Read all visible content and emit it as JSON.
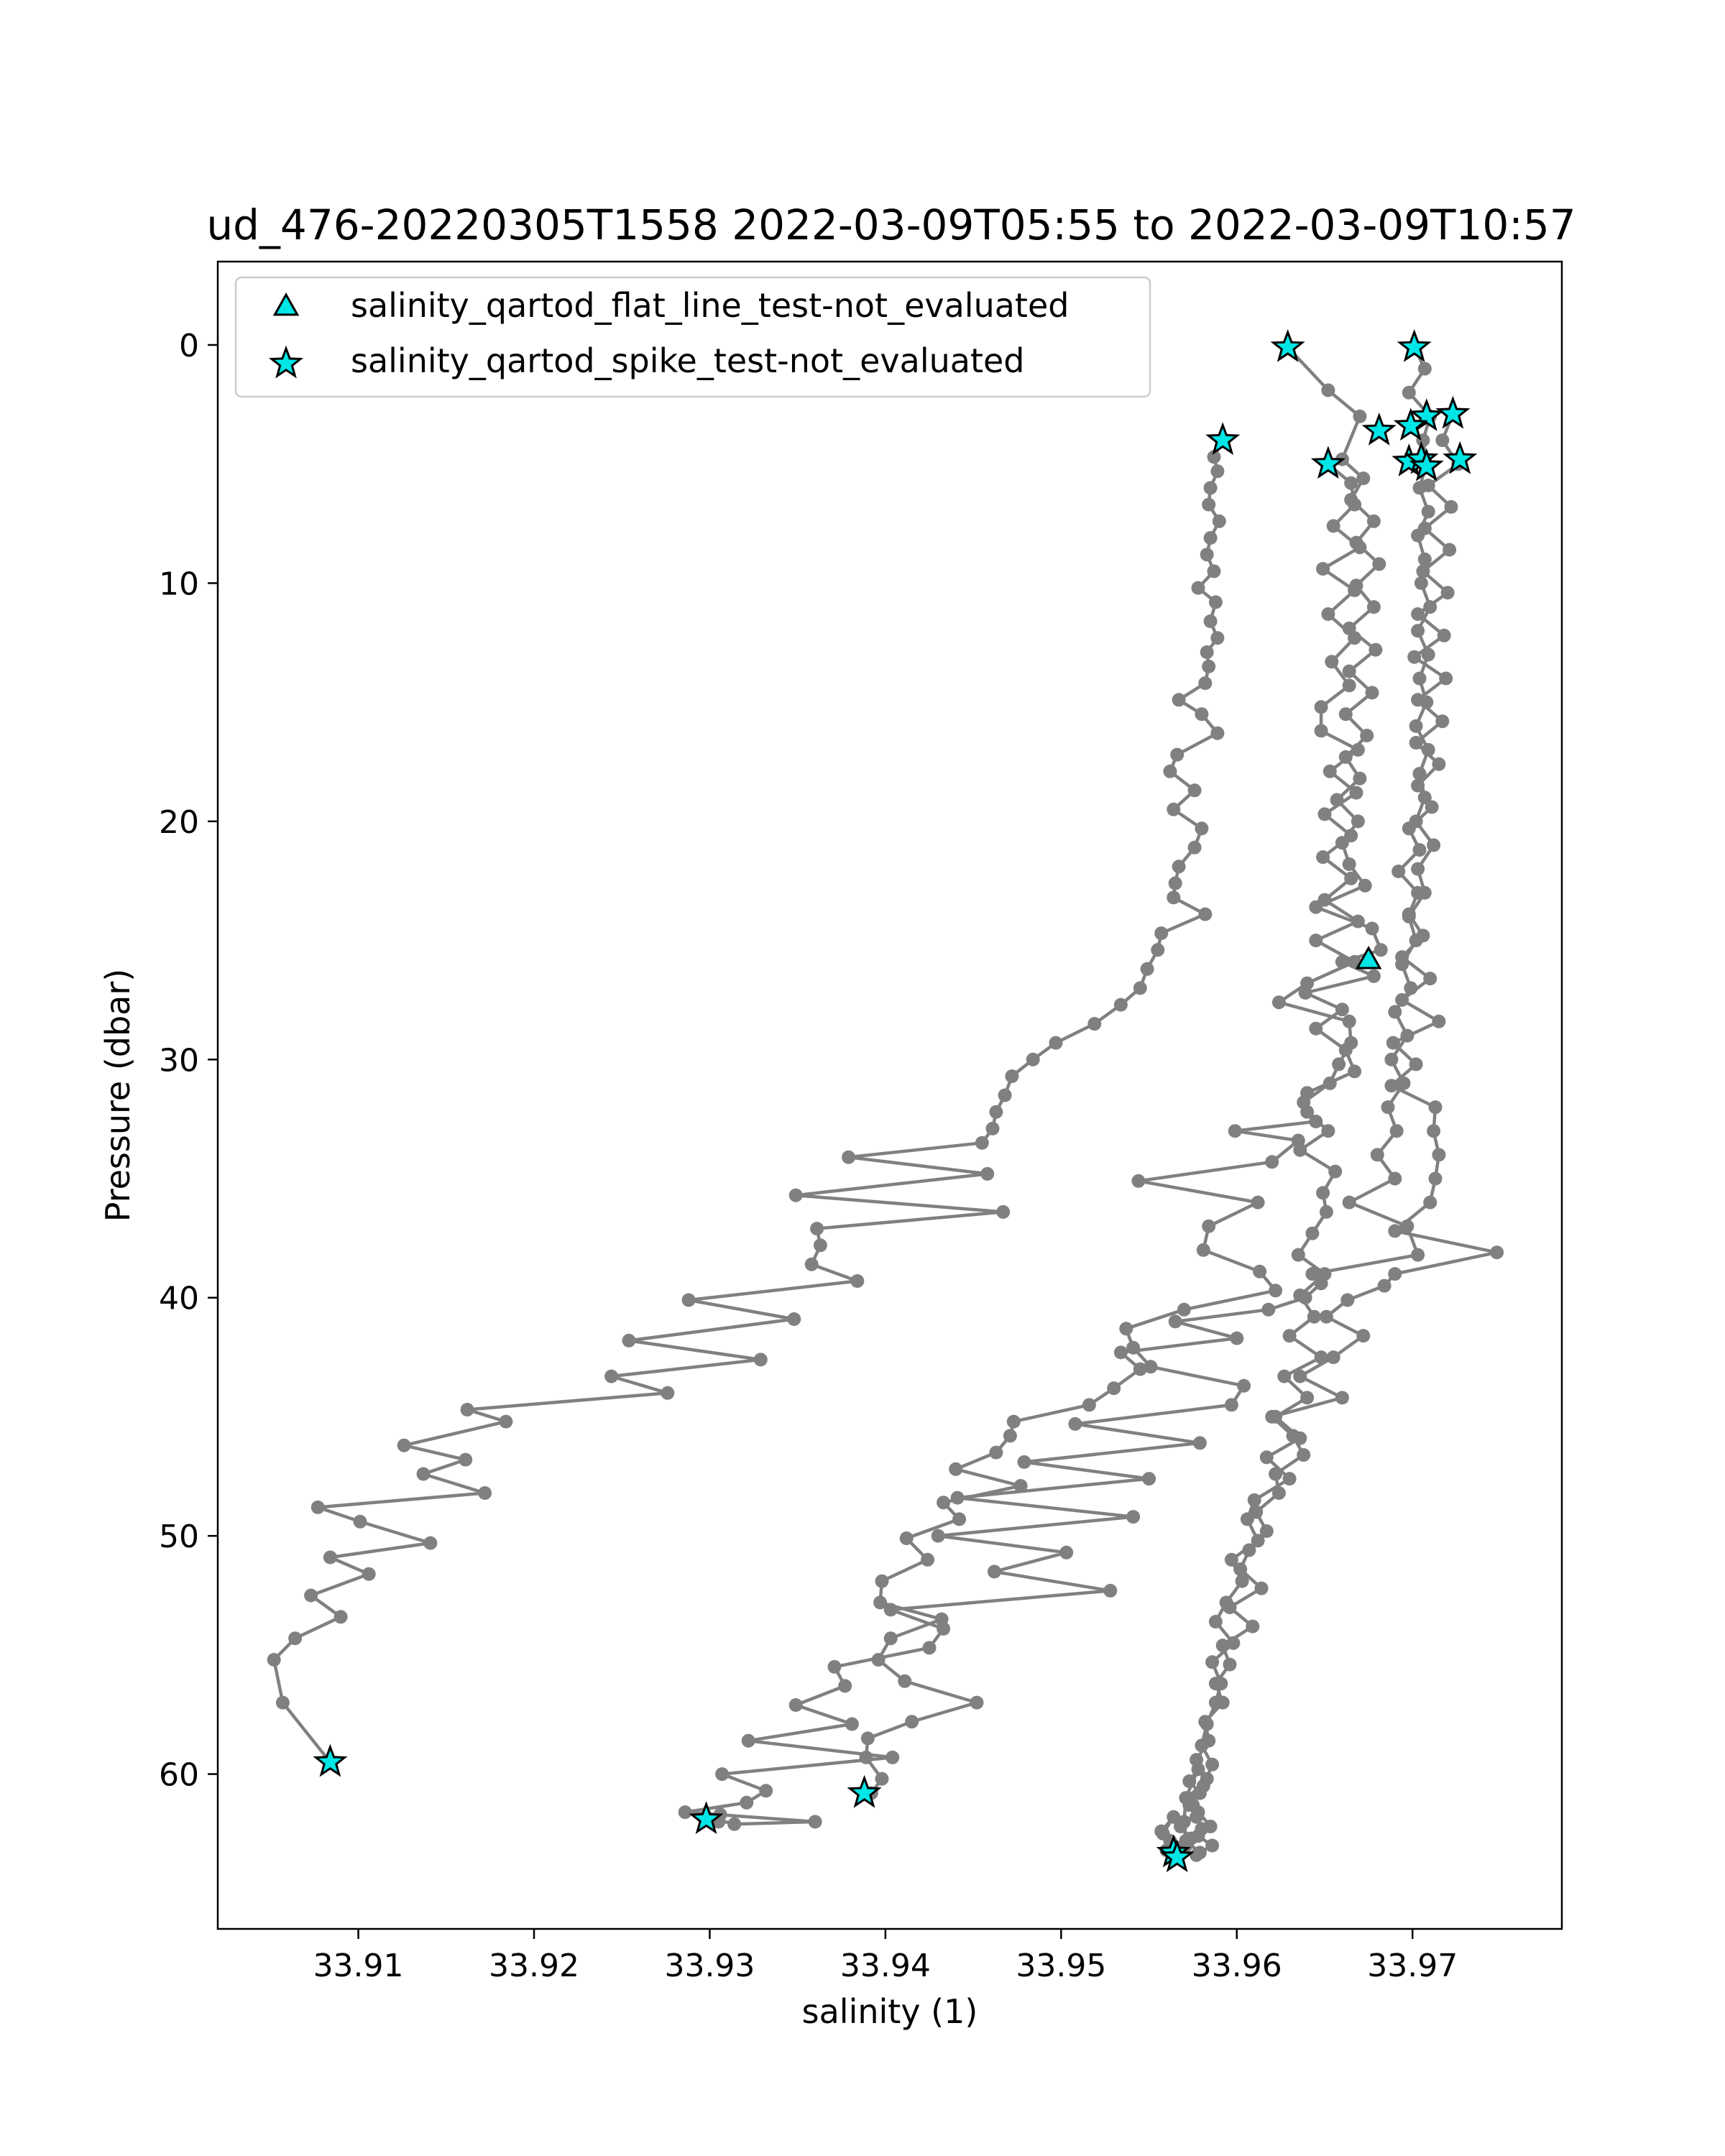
{
  "chart_data": {
    "type": "line",
    "title": "ud_476-20220305T1558 2022-03-09T05:55 to 2022-03-09T10:57",
    "xlabel": "salinity (1)",
    "ylabel": "Pressure (dbar)",
    "xlim": [
      33.902,
      33.9785
    ],
    "ylim": [
      66.5,
      -3.5
    ],
    "y_inverted": true,
    "xticks": [
      33.91,
      33.92,
      33.93,
      33.94,
      33.95,
      33.96,
      33.97
    ],
    "xtick_labels": [
      "33.91",
      "33.92",
      "33.93",
      "33.94",
      "33.95",
      "33.96",
      "33.97"
    ],
    "yticks": [
      0,
      10,
      20,
      30,
      40,
      50,
      60
    ],
    "ytick_labels": [
      "0",
      "10",
      "20",
      "30",
      "40",
      "50",
      "60"
    ],
    "grid": false,
    "legend_position": "top-left",
    "colors": {
      "line": "#808080",
      "marker_fill": "#00e5e5",
      "marker_edge": "#000000"
    },
    "legend": [
      {
        "label": "salinity_qartod_flat_line_test-not_evaluated",
        "marker": "triangle"
      },
      {
        "label": "salinity_qartod_spike_test-not_evaluated",
        "marker": "star"
      }
    ],
    "series": [
      {
        "x": [
          33.9592,
          33.9587,
          33.9589,
          33.9585,
          33.9584,
          33.959,
          33.9585,
          33.9583,
          33.9587,
          33.9578,
          33.9588,
          33.9585,
          33.9589,
          33.9583,
          33.9584,
          33.9582,
          33.9567,
          33.958,
          33.9589,
          33.9566,
          33.9562,
          33.9576,
          33.9564,
          33.958,
          33.9576,
          33.9567,
          33.9565,
          33.9564,
          33.9582,
          33.9557,
          33.9555,
          33.9549,
          33.9545,
          33.9534,
          33.9519,
          33.9497,
          33.9484,
          33.9472,
          33.9468,
          33.9463,
          33.9461,
          33.9455,
          33.9379,
          33.9458,
          33.9349,
          33.9467,
          33.9361,
          33.9363,
          33.9358,
          33.9384,
          33.9288,
          33.9348,
          33.9254,
          33.9329,
          33.9244,
          33.9276,
          33.9162,
          33.9184,
          33.9126,
          33.9161,
          33.9137,
          33.9172,
          33.9077,
          33.9101,
          33.9141,
          33.9084,
          33.9106,
          33.9073,
          33.909,
          33.9064,
          33.9052,
          33.9057,
          33.9084
        ],
        "y": [
          4.0,
          4.7,
          5.3,
          6.0,
          6.7,
          7.4,
          8.1,
          8.8,
          9.5,
          10.2,
          10.8,
          11.6,
          12.3,
          12.9,
          13.5,
          14.2,
          14.9,
          15.5,
          16.3,
          17.2,
          17.9,
          18.7,
          19.5,
          20.3,
          21.1,
          21.9,
          22.6,
          23.2,
          23.9,
          24.7,
          25.4,
          26.2,
          27.0,
          27.7,
          28.5,
          29.3,
          30.0,
          30.7,
          31.5,
          32.2,
          32.9,
          33.5,
          34.1,
          34.8,
          35.7,
          36.4,
          37.1,
          37.8,
          38.6,
          39.3,
          40.1,
          40.9,
          41.8,
          42.6,
          43.3,
          44.0,
          44.7,
          45.2,
          46.2,
          46.8,
          47.4,
          48.2,
          48.8,
          49.4,
          50.3,
          50.9,
          51.6,
          52.5,
          53.4,
          54.3,
          55.2,
          57.0,
          59.5
        ]
      },
      {
        "x": [
          33.9652,
          33.9665,
          33.9667,
          33.9655,
          33.967,
          33.9649,
          33.9667,
          33.9652,
          33.9667,
          33.9654,
          33.9664,
          33.9648,
          33.9648,
          33.9669,
          33.9653,
          33.9668,
          33.965,
          33.9665,
          33.9649,
          33.9665,
          33.965,
          33.9669,
          33.9645,
          33.9667,
          33.964,
          33.9624,
          33.9664,
          33.9665,
          33.9658,
          33.9653,
          33.9638,
          33.9645,
          33.9599,
          33.9635,
          33.962,
          33.9544,
          33.9612,
          33.9584,
          33.9581,
          33.9613,
          33.9622,
          33.957,
          33.9537,
          33.9541,
          33.9551,
          33.9604,
          33.9597,
          33.9508,
          33.9579,
          33.9479,
          33.955,
          33.9441,
          33.9541,
          33.943,
          33.9503,
          33.9462,
          33.9528,
          33.9403,
          33.9433,
          33.9425,
          33.9371,
          33.9377,
          33.9349,
          33.9381,
          33.9322,
          33.9404,
          33.9307,
          33.9332,
          33.9321,
          33.9286,
          33.936,
          33.9314,
          33.9298,
          33.9306,
          33.9305,
          33.9298
        ],
        "y": [
          5.0,
          5.8,
          6.7,
          7.6,
          8.5,
          9.4,
          10.3,
          11.3,
          12.3,
          13.3,
          14.3,
          15.2,
          16.2,
          17.0,
          17.9,
          18.8,
          19.7,
          20.6,
          21.5,
          22.4,
          23.3,
          24.2,
          25.0,
          25.9,
          26.8,
          27.6,
          28.4,
          29.3,
          30.2,
          31.0,
          31.8,
          32.6,
          33.0,
          33.4,
          34.3,
          35.1,
          36.0,
          37.0,
          38.0,
          38.9,
          39.7,
          40.5,
          41.3,
          42.1,
          42.9,
          43.7,
          44.5,
          45.3,
          46.1,
          46.9,
          47.6,
          48.4,
          49.2,
          50.0,
          50.7,
          51.5,
          52.3,
          53.1,
          53.9,
          54.7,
          55.5,
          56.3,
          57.1,
          57.9,
          58.6,
          59.3,
          60.0,
          60.7,
          61.2,
          61.6,
          62.0,
          62.1,
          61.8,
          61.7,
          62.0,
          61.9
        ]
      },
      {
        "x": [
          33.9701,
          33.9707,
          33.9698,
          33.971,
          33.9706,
          33.9708,
          33.9704,
          33.9709,
          33.9703,
          33.9707,
          33.9705,
          33.971,
          33.9703,
          33.9709,
          33.9704,
          33.9708,
          33.9702,
          33.9709,
          33.9704,
          33.9707,
          33.9702,
          33.9712,
          33.9703,
          33.9707,
          33.9698,
          33.9702,
          33.9694,
          33.9699,
          33.969,
          33.9697,
          33.9688,
          33.9695,
          33.9686,
          33.9691,
          33.968,
          33.969,
          33.9664,
          33.9697,
          33.9703,
          33.9643,
          33.9648,
          33.9639,
          33.9618,
          33.9565,
          33.96,
          33.9534,
          33.9545,
          33.953,
          33.9516,
          33.9473,
          33.9471,
          33.9463,
          33.944,
          33.9477,
          33.9433,
          33.9442,
          33.9412,
          33.9424,
          33.9398,
          33.9397,
          33.9432,
          33.9403,
          33.9396,
          33.9411,
          33.9452,
          33.9415,
          33.939,
          33.9389,
          33.9398,
          33.9392
        ],
        "y": [
          0.1,
          1.0,
          2.0,
          3.0,
          4.0,
          5.0,
          6.0,
          7.0,
          8.0,
          9.0,
          10.0,
          11.0,
          12.0,
          13.0,
          14.0,
          15.0,
          16.0,
          17.0,
          18.0,
          19.0,
          20.0,
          21.0,
          22.0,
          23.0,
          24.0,
          25.0,
          26.0,
          27.0,
          28.0,
          29.0,
          30.0,
          31.0,
          32.0,
          33.0,
          34.0,
          35.0,
          36.0,
          37.0,
          38.2,
          39.0,
          39.4,
          40.0,
          40.5,
          41.0,
          41.7,
          42.3,
          43.0,
          43.8,
          44.5,
          45.2,
          45.8,
          46.5,
          47.2,
          47.9,
          48.6,
          49.3,
          50.1,
          51.0,
          51.9,
          52.8,
          53.5,
          54.3,
          55.2,
          56.1,
          57.0,
          57.8,
          58.5,
          59.3,
          60.2,
          60.8
        ]
      },
      {
        "x": [
          33.9629,
          33.9652,
          33.967,
          33.966,
          33.9672,
          33.9665,
          33.9678,
          33.9668,
          33.9681,
          33.9668,
          33.9678,
          33.9664,
          33.9679,
          33.9664,
          33.9677,
          33.9662,
          33.9674,
          33.9662,
          33.967,
          33.9657,
          33.9669,
          33.966,
          33.9664,
          33.9673,
          33.9645,
          33.9677,
          33.9682,
          33.966,
          33.9678,
          33.9639,
          33.966,
          33.9645,
          33.9662,
          33.9667,
          33.964,
          33.964,
          33.9652,
          33.9636,
          33.9656,
          33.9649,
          33.9651,
          33.9643,
          33.9635,
          33.965,
          33.9636,
          33.9644,
          33.963,
          33.9648,
          33.9627,
          33.964,
          33.9622,
          33.9636,
          33.9617,
          33.963,
          33.961,
          33.9606,
          33.9612,
          33.9597,
          33.9603,
          33.9594,
          33.9588,
          33.9598,
          33.9586,
          33.9591,
          33.9588,
          33.9583,
          33.958,
          33.9586,
          33.9581,
          33.9575,
          33.9585,
          33.9578,
          33.9586,
          33.9579,
          33.9571,
          33.958,
          33.9577,
          33.9573,
          33.9579,
          33.9573,
          33.9578,
          33.9571,
          33.957,
          33.9571,
          33.9564,
          33.9565
        ],
        "y": [
          0.1,
          1.9,
          3.0,
          4.8,
          5.6,
          6.5,
          7.4,
          8.3,
          9.2,
          10.1,
          11.0,
          11.9,
          12.8,
          13.7,
          14.6,
          15.5,
          16.4,
          17.3,
          18.2,
          19.1,
          20.0,
          20.9,
          21.8,
          22.7,
          23.6,
          24.5,
          25.4,
          25.9,
          26.5,
          27.2,
          27.9,
          28.7,
          29.6,
          30.5,
          31.4,
          32.2,
          33.0,
          33.8,
          34.7,
          35.6,
          36.4,
          37.3,
          38.2,
          39.0,
          39.9,
          40.8,
          41.6,
          42.5,
          43.3,
          44.2,
          45.0,
          45.9,
          46.7,
          47.6,
          48.5,
          49.3,
          50.2,
          51.0,
          51.9,
          52.8,
          53.6,
          54.5,
          55.3,
          56.2,
          57.0,
          57.9,
          58.8,
          59.6,
          60.5,
          61.3,
          62.2,
          62.6,
          63.0,
          63.3,
          62.8,
          62.3,
          61.8,
          61.3,
          60.8,
          60.3,
          59.8,
          61.0,
          62.0,
          63.0,
          63.3,
          63.5
        ]
      },
      {
        "x": [
          33.9723,
          33.9717,
          33.9726,
          33.9709,
          33.9722,
          33.9707,
          33.9721,
          33.9706,
          33.972,
          33.9703,
          33.9718,
          33.9701,
          33.9719,
          33.9703,
          33.9717,
          33.9702,
          33.9715,
          33.9703,
          33.9711,
          33.9698,
          33.9704,
          33.9692,
          33.9703,
          33.9698,
          33.9706,
          33.9694,
          33.971,
          33.9694,
          33.9715,
          33.9689,
          33.9702,
          33.9688,
          33.9713,
          33.9712,
          33.9715,
          33.9713,
          33.971,
          33.969,
          33.9748,
          33.969,
          33.9684,
          33.9663,
          33.9651,
          33.9672,
          33.9655,
          33.9636,
          33.966,
          33.962,
          33.9632,
          33.9638,
          33.9622,
          33.9624,
          33.9611,
          33.9617,
          33.9607,
          33.9602,
          33.9614,
          33.9596,
          33.9609,
          33.9592,
          33.9596,
          33.9588,
          33.9592,
          33.9582,
          33.9584,
          33.9577,
          33.9583,
          33.9572,
          33.9578,
          33.9568,
          33.9574,
          33.9566,
          33.9577,
          33.956,
          33.9562,
          33.9557,
          33.9564,
          33.9558,
          33.9567
        ],
        "y": [
          2.9,
          4.0,
          5.0,
          5.9,
          6.8,
          7.7,
          8.6,
          9.5,
          10.4,
          11.3,
          12.2,
          13.1,
          14.0,
          14.9,
          15.8,
          16.7,
          17.6,
          18.5,
          19.4,
          20.3,
          21.2,
          22.1,
          23.0,
          23.9,
          24.8,
          25.7,
          26.6,
          27.5,
          28.4,
          29.3,
          30.2,
          31.1,
          32.0,
          33.0,
          34.0,
          35.0,
          36.0,
          37.2,
          38.1,
          39.0,
          39.5,
          40.1,
          40.8,
          41.6,
          42.5,
          43.3,
          44.2,
          45.0,
          45.8,
          46.6,
          47.4,
          48.2,
          49.0,
          49.8,
          50.6,
          51.4,
          52.2,
          53.0,
          53.8,
          54.6,
          55.4,
          56.2,
          57.0,
          57.8,
          58.6,
          59.4,
          60.2,
          61.0,
          61.6,
          62.2,
          62.7,
          63.1,
          63.4,
          63.2,
          62.8,
          62.4,
          61.8,
          62.5,
          63.4
        ]
      }
    ],
    "flat_line_flags": {
      "x": [
        33.9675
      ],
      "y": [
        25.8
      ]
    },
    "spike_flags": {
      "x": [
        33.9629,
        33.9701,
        33.9723,
        33.9708,
        33.9699,
        33.9681,
        33.9652,
        33.9698,
        33.9705,
        33.9727,
        33.9708,
        33.9592,
        33.9084,
        33.9298,
        33.9388,
        33.9564,
        33.9566
      ],
      "y": [
        0.1,
        0.1,
        2.9,
        3.0,
        3.4,
        3.6,
        5.0,
        4.9,
        4.8,
        4.8,
        5.1,
        4.0,
        59.5,
        61.9,
        60.8,
        63.3,
        63.5
      ]
    }
  }
}
